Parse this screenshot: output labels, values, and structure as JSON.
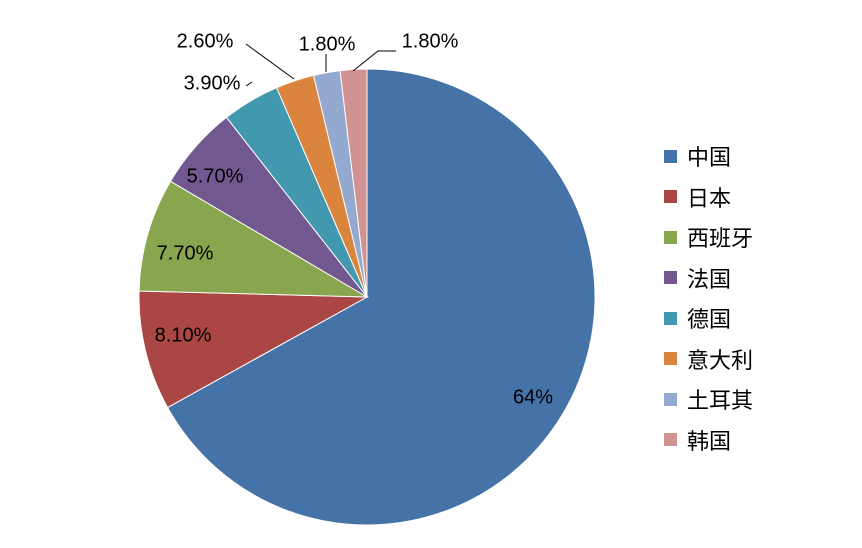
{
  "chart_data": {
    "type": "pie",
    "categories": [
      "中国",
      "日本",
      "西班牙",
      "法国",
      "德国",
      "意大利",
      "土耳其",
      "韩国"
    ],
    "values": [
      64,
      8.1,
      7.7,
      5.7,
      3.9,
      2.6,
      1.8,
      1.8
    ],
    "data_labels": [
      "64%",
      "8.10%",
      "7.70%",
      "5.70%",
      "3.90%",
      "2.60%",
      "1.80%",
      "1.80%"
    ],
    "colors": [
      "#4572A7",
      "#AA4643",
      "#89A54E",
      "#71588F",
      "#4198AF",
      "#DB843D",
      "#93A9CF",
      "#D19392"
    ],
    "legend_position": "right"
  }
}
